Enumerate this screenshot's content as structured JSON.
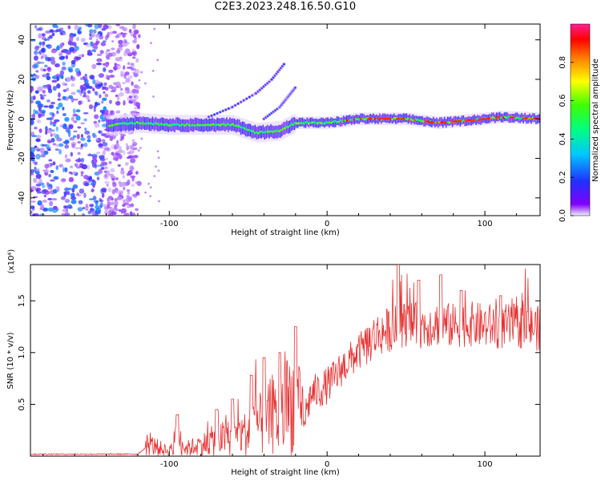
{
  "title": "C2E3.2023.248.16.50.G10",
  "colors": {
    "signal": "#e63232",
    "axis": "#000000",
    "background": "#ffffff"
  },
  "chart_data": [
    {
      "type": "heatmap",
      "xlabel": "Height of straight line (km)",
      "ylabel": "Frequency (Hz)",
      "xlim": [
        -188,
        135
      ],
      "ylim": [
        -49,
        48
      ],
      "xticks": [
        -100,
        0,
        100
      ],
      "xtick_labels": [
        "-100",
        "0",
        "100"
      ],
      "yticks": [
        -40,
        -20,
        0,
        20,
        40
      ],
      "ytick_labels": [
        "-40",
        "-20",
        "0",
        "20",
        "40"
      ],
      "colorbar": {
        "label": "Normalized spectral amplitude",
        "range": [
          0,
          1
        ],
        "ticks": [
          0.0,
          0.2,
          0.4,
          0.6,
          0.8
        ],
        "tick_labels": [
          "0.0",
          "0.2",
          "0.4",
          "0.6",
          "0.8"
        ],
        "colormap": "rainbow (violet-blue-cyan-green-yellow-red-magenta)"
      },
      "features": {
        "noise_region_x": [
          -188,
          -125
        ],
        "main_tone": [
          {
            "x": -135,
            "y": -3
          },
          {
            "x": -120,
            "y": -2
          },
          {
            "x": -100,
            "y": -3
          },
          {
            "x": -80,
            "y": -3
          },
          {
            "x": -60,
            "y": -3
          },
          {
            "x": -45,
            "y": -7
          },
          {
            "x": -30,
            "y": -6
          },
          {
            "x": -20,
            "y": -2
          },
          {
            "x": 0,
            "y": -2
          },
          {
            "x": 20,
            "y": 0
          },
          {
            "x": 50,
            "y": 0
          },
          {
            "x": 70,
            "y": -2
          },
          {
            "x": 100,
            "y": 0
          },
          {
            "x": 110,
            "y": 1
          },
          {
            "x": 135,
            "y": 0
          }
        ],
        "diverging_branches": [
          [
            {
              "x": -75,
              "y": 1
            },
            {
              "x": -60,
              "y": 6
            },
            {
              "x": -45,
              "y": 13
            },
            {
              "x": -35,
              "y": 20
            },
            {
              "x": -27,
              "y": 28
            }
          ],
          [
            {
              "x": -40,
              "y": 0
            },
            {
              "x": -30,
              "y": 6
            },
            {
              "x": -25,
              "y": 11
            },
            {
              "x": -20,
              "y": 16
            }
          ]
        ]
      }
    },
    {
      "type": "line",
      "xlabel": "Height of straight line (km)",
      "ylabel": "SNR (10 * v/v)",
      "y_multiplier": "(x10⁴)",
      "xlim": [
        -188,
        135
      ],
      "ylim": [
        0,
        1.85
      ],
      "xticks": [
        -100,
        0,
        100
      ],
      "xtick_labels": [
        "-100",
        "0",
        "100"
      ],
      "yticks": [
        0.5,
        1.0,
        1.5
      ],
      "ytick_labels": [
        "0.5",
        "1.0",
        "1.5"
      ],
      "series": [
        {
          "color": "#e63232",
          "x": [
            -188,
            -150,
            -120,
            -112,
            -100,
            -95,
            -90,
            -80,
            -70,
            -60,
            -50,
            -45,
            -40,
            -35,
            -30,
            -25,
            -20,
            -15,
            -10,
            -5,
            0,
            5,
            10,
            15,
            20,
            25,
            30,
            40,
            50,
            60,
            70,
            80,
            90,
            100,
            110,
            120,
            130,
            135
          ],
          "y": [
            0.02,
            0.02,
            0.02,
            0.12,
            0.05,
            0.2,
            0.08,
            0.12,
            0.18,
            0.2,
            0.25,
            0.38,
            0.3,
            0.45,
            0.35,
            0.55,
            0.6,
            0.35,
            0.62,
            0.65,
            0.7,
            0.78,
            0.88,
            0.95,
            1.02,
            1.1,
            1.18,
            1.25,
            1.3,
            1.28,
            1.3,
            1.28,
            1.3,
            1.28,
            1.27,
            1.28,
            1.27,
            1.25
          ]
        }
      ],
      "spikes": [
        {
          "x": -95,
          "y": 0.4
        },
        {
          "x": -70,
          "y": 0.45
        },
        {
          "x": -60,
          "y": 0.55
        },
        {
          "x": -48,
          "y": 0.78
        },
        {
          "x": -40,
          "y": 0.95
        },
        {
          "x": -30,
          "y": 1.0
        },
        {
          "x": -20,
          "y": 1.25
        },
        {
          "x": 45,
          "y": 1.85
        },
        {
          "x": 58,
          "y": 1.7
        },
        {
          "x": 72,
          "y": 1.75
        },
        {
          "x": 85,
          "y": 1.6
        },
        {
          "x": 110,
          "y": 1.55
        }
      ]
    }
  ]
}
